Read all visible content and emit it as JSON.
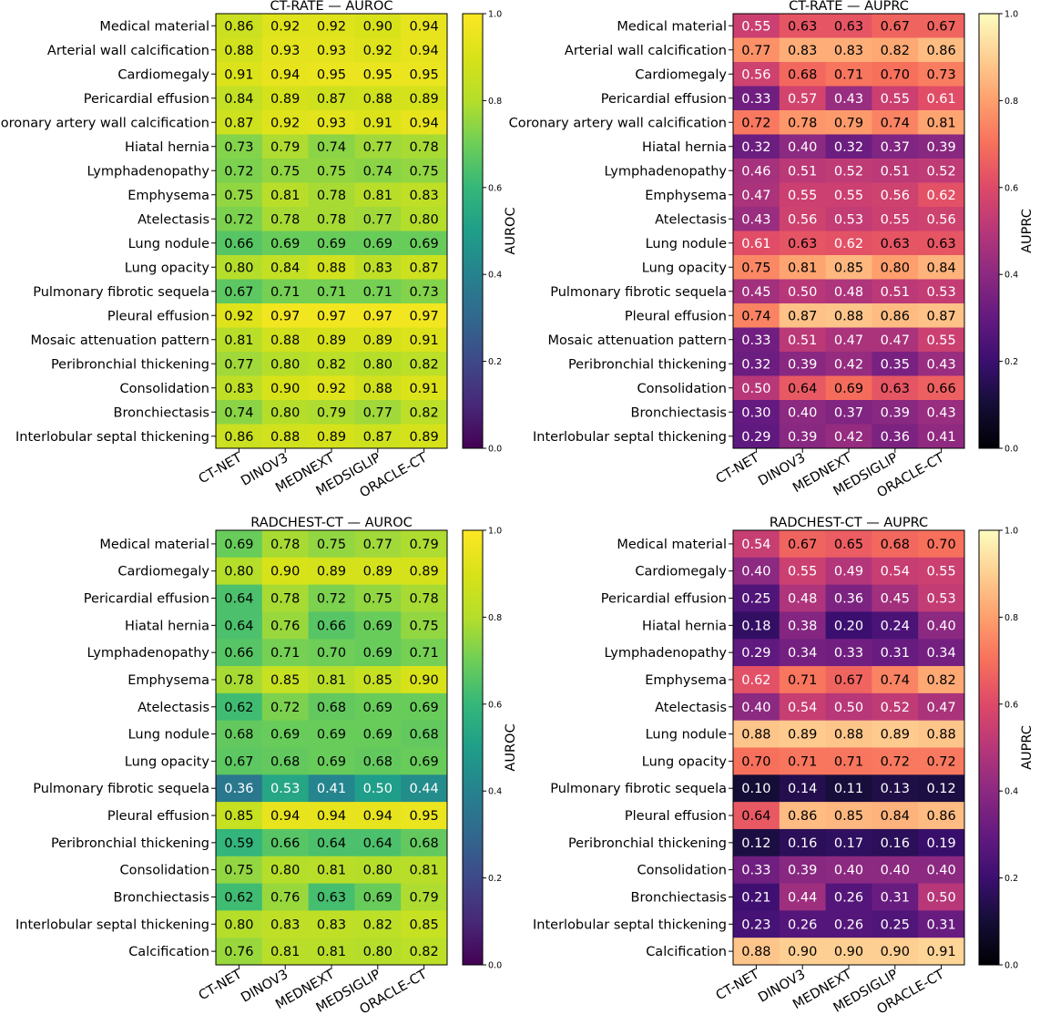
{
  "colorbar_ticks": [
    "0.0",
    "0.2",
    "0.4",
    "0.6",
    "0.8",
    "1.0"
  ],
  "chart_data": [
    {
      "type": "heatmap",
      "title": "CT-RATE — AUROC",
      "colorbar_label": "AUROC",
      "colormap": "viridis",
      "vmin": 0,
      "vmax": 1,
      "columns": [
        "CT-NET",
        "DINOV3",
        "MEDNEXT",
        "MEDSIGLIP",
        "ORACLE-CT"
      ],
      "rows": [
        "Medical material",
        "Arterial wall calcification",
        "Cardiomegaly",
        "Pericardial effusion",
        "Coronary artery wall calcification",
        "Hiatal hernia",
        "Lymphadenopathy",
        "Emphysema",
        "Atelectasis",
        "Lung nodule",
        "Lung opacity",
        "Pulmonary fibrotic sequela",
        "Pleural effusion",
        "Mosaic attenuation pattern",
        "Peribronchial thickening",
        "Consolidation",
        "Bronchiectasis",
        "Interlobular septal thickening"
      ],
      "values": [
        [
          0.86,
          0.92,
          0.92,
          0.9,
          0.94
        ],
        [
          0.88,
          0.93,
          0.93,
          0.92,
          0.94
        ],
        [
          0.91,
          0.94,
          0.95,
          0.95,
          0.95
        ],
        [
          0.84,
          0.89,
          0.87,
          0.88,
          0.89
        ],
        [
          0.87,
          0.92,
          0.93,
          0.91,
          0.94
        ],
        [
          0.73,
          0.79,
          0.74,
          0.77,
          0.78
        ],
        [
          0.72,
          0.75,
          0.75,
          0.74,
          0.75
        ],
        [
          0.75,
          0.81,
          0.78,
          0.81,
          0.83
        ],
        [
          0.72,
          0.78,
          0.78,
          0.77,
          0.8
        ],
        [
          0.66,
          0.69,
          0.69,
          0.69,
          0.69
        ],
        [
          0.8,
          0.84,
          0.88,
          0.83,
          0.87
        ],
        [
          0.67,
          0.71,
          0.71,
          0.71,
          0.73
        ],
        [
          0.92,
          0.97,
          0.97,
          0.97,
          0.97
        ],
        [
          0.81,
          0.88,
          0.89,
          0.89,
          0.91
        ],
        [
          0.77,
          0.8,
          0.82,
          0.8,
          0.82
        ],
        [
          0.83,
          0.9,
          0.92,
          0.88,
          0.91
        ],
        [
          0.74,
          0.8,
          0.79,
          0.77,
          0.82
        ],
        [
          0.86,
          0.88,
          0.89,
          0.87,
          0.89
        ]
      ]
    },
    {
      "type": "heatmap",
      "title": "CT-RATE — AUPRC",
      "colorbar_label": "AUPRC",
      "colormap": "magma",
      "vmin": 0,
      "vmax": 1,
      "columns": [
        "CT-NET",
        "DINOV3",
        "MEDNEXT",
        "MEDSIGLIP",
        "ORACLE-CT"
      ],
      "rows": [
        "Medical material",
        "Arterial wall calcification",
        "Cardiomegaly",
        "Pericardial effusion",
        "Coronary artery wall calcification",
        "Hiatal hernia",
        "Lymphadenopathy",
        "Emphysema",
        "Atelectasis",
        "Lung nodule",
        "Lung opacity",
        "Pulmonary fibrotic sequela",
        "Pleural effusion",
        "Mosaic attenuation pattern",
        "Peribronchial thickening",
        "Consolidation",
        "Bronchiectasis",
        "Interlobular septal thickening"
      ],
      "values": [
        [
          0.55,
          0.63,
          0.63,
          0.67,
          0.67
        ],
        [
          0.77,
          0.83,
          0.83,
          0.82,
          0.86
        ],
        [
          0.56,
          0.68,
          0.71,
          0.7,
          0.73
        ],
        [
          0.33,
          0.57,
          0.43,
          0.55,
          0.61
        ],
        [
          0.72,
          0.78,
          0.79,
          0.74,
          0.81
        ],
        [
          0.32,
          0.4,
          0.32,
          0.37,
          0.39
        ],
        [
          0.46,
          0.51,
          0.52,
          0.51,
          0.52
        ],
        [
          0.47,
          0.55,
          0.55,
          0.56,
          0.62
        ],
        [
          0.43,
          0.56,
          0.53,
          0.55,
          0.56
        ],
        [
          0.61,
          0.63,
          0.62,
          0.63,
          0.63
        ],
        [
          0.75,
          0.81,
          0.85,
          0.8,
          0.84
        ],
        [
          0.45,
          0.5,
          0.48,
          0.51,
          0.53
        ],
        [
          0.74,
          0.87,
          0.88,
          0.86,
          0.87
        ],
        [
          0.33,
          0.51,
          0.47,
          0.47,
          0.55
        ],
        [
          0.32,
          0.39,
          0.42,
          0.35,
          0.43
        ],
        [
          0.5,
          0.64,
          0.69,
          0.63,
          0.66
        ],
        [
          0.3,
          0.4,
          0.37,
          0.39,
          0.43
        ],
        [
          0.29,
          0.39,
          0.42,
          0.36,
          0.41
        ]
      ]
    },
    {
      "type": "heatmap",
      "title": "RADCHEST-CT — AUROC",
      "colorbar_label": "AUROC",
      "colormap": "viridis",
      "vmin": 0,
      "vmax": 1,
      "columns": [
        "CT-NET",
        "DINOV3",
        "MEDNEXT",
        "MEDSIGLIP",
        "ORACLE-CT"
      ],
      "rows": [
        "Medical material",
        "Cardiomegaly",
        "Pericardial effusion",
        "Hiatal hernia",
        "Lymphadenopathy",
        "Emphysema",
        "Atelectasis",
        "Lung nodule",
        "Lung opacity",
        "Pulmonary fibrotic sequela",
        "Pleural effusion",
        "Peribronchial thickening",
        "Consolidation",
        "Bronchiectasis",
        "Interlobular septal thickening",
        "Calcification"
      ],
      "values": [
        [
          0.69,
          0.78,
          0.75,
          0.77,
          0.79
        ],
        [
          0.8,
          0.9,
          0.89,
          0.89,
          0.89
        ],
        [
          0.64,
          0.78,
          0.72,
          0.75,
          0.78
        ],
        [
          0.64,
          0.76,
          0.66,
          0.69,
          0.75
        ],
        [
          0.66,
          0.71,
          0.7,
          0.69,
          0.71
        ],
        [
          0.78,
          0.85,
          0.81,
          0.85,
          0.9
        ],
        [
          0.62,
          0.72,
          0.68,
          0.69,
          0.69
        ],
        [
          0.68,
          0.69,
          0.69,
          0.69,
          0.68
        ],
        [
          0.67,
          0.68,
          0.69,
          0.68,
          0.69
        ],
        [
          0.36,
          0.53,
          0.41,
          0.5,
          0.44
        ],
        [
          0.85,
          0.94,
          0.94,
          0.94,
          0.95
        ],
        [
          0.59,
          0.66,
          0.64,
          0.64,
          0.68
        ],
        [
          0.75,
          0.8,
          0.81,
          0.8,
          0.81
        ],
        [
          0.62,
          0.76,
          0.63,
          0.69,
          0.79
        ],
        [
          0.8,
          0.83,
          0.83,
          0.82,
          0.85
        ],
        [
          0.76,
          0.81,
          0.81,
          0.8,
          0.82
        ]
      ]
    },
    {
      "type": "heatmap",
      "title": "RADCHEST-CT — AUPRC",
      "colorbar_label": "AUPRC",
      "colormap": "magma",
      "vmin": 0,
      "vmax": 1,
      "columns": [
        "CT-NET",
        "DINOV3",
        "MEDNEXT",
        "MEDSIGLIP",
        "ORACLE-CT"
      ],
      "rows": [
        "Medical material",
        "Cardiomegaly",
        "Pericardial effusion",
        "Hiatal hernia",
        "Lymphadenopathy",
        "Emphysema",
        "Atelectasis",
        "Lung nodule",
        "Lung opacity",
        "Pulmonary fibrotic sequela",
        "Pleural effusion",
        "Peribronchial thickening",
        "Consolidation",
        "Bronchiectasis",
        "Interlobular septal thickening",
        "Calcification"
      ],
      "values": [
        [
          0.54,
          0.67,
          0.65,
          0.68,
          0.7
        ],
        [
          0.4,
          0.55,
          0.49,
          0.54,
          0.55
        ],
        [
          0.25,
          0.48,
          0.36,
          0.45,
          0.53
        ],
        [
          0.18,
          0.38,
          0.2,
          0.24,
          0.4
        ],
        [
          0.29,
          0.34,
          0.33,
          0.31,
          0.34
        ],
        [
          0.62,
          0.71,
          0.67,
          0.74,
          0.82
        ],
        [
          0.4,
          0.54,
          0.5,
          0.52,
          0.47
        ],
        [
          0.88,
          0.89,
          0.88,
          0.89,
          0.88
        ],
        [
          0.7,
          0.71,
          0.71,
          0.72,
          0.72
        ],
        [
          0.1,
          0.14,
          0.11,
          0.13,
          0.12
        ],
        [
          0.64,
          0.86,
          0.85,
          0.84,
          0.86
        ],
        [
          0.12,
          0.16,
          0.17,
          0.16,
          0.19
        ],
        [
          0.33,
          0.39,
          0.4,
          0.4,
          0.4
        ],
        [
          0.21,
          0.44,
          0.26,
          0.31,
          0.5
        ],
        [
          0.23,
          0.26,
          0.26,
          0.25,
          0.31
        ],
        [
          0.88,
          0.9,
          0.9,
          0.9,
          0.91
        ]
      ]
    }
  ]
}
